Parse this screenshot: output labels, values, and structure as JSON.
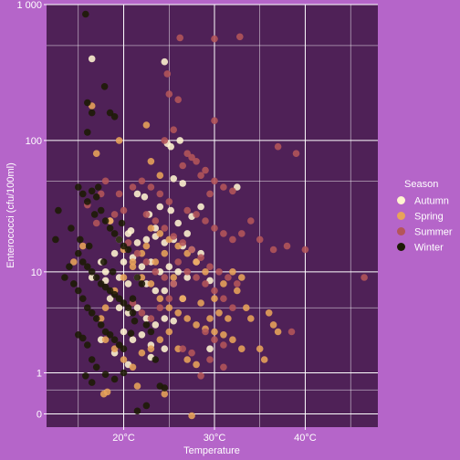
{
  "chart_data": {
    "type": "scatter",
    "title": "",
    "xlabel": "Temperature",
    "ylabel": "Enterococci (cfu/100ml)",
    "x_scale": "linear",
    "y_scale": "log10(y+1)",
    "xlim": [
      11.5,
      48
    ],
    "ylim": [
      -0.2,
      1000
    ],
    "x_ticks": [
      20,
      30,
      40
    ],
    "x_tick_labels": [
      "20°C",
      "30°C",
      "40°C"
    ],
    "y_ticks": [
      0,
      1,
      10,
      100,
      1000
    ],
    "y_tick_labels": [
      "0",
      "1",
      "10",
      "100",
      "1 000"
    ],
    "grid": true,
    "legend": {
      "title": "Season",
      "placement": "right"
    },
    "colors": {
      "panel": "#4f2157",
      "background": "#b565c9",
      "grid": "#ffffff"
    },
    "series": [
      {
        "name": "Autumn",
        "color": "#fff4d0",
        "points": [
          [
            16.5,
            400
          ],
          [
            24.5,
            380
          ],
          [
            24.8,
            95
          ],
          [
            25.2,
            90
          ],
          [
            26.2,
            100
          ],
          [
            21.5,
            40
          ],
          [
            22.3,
            38
          ],
          [
            25.5,
            52
          ],
          [
            26.5,
            48
          ],
          [
            24.0,
            32
          ],
          [
            25.2,
            30
          ],
          [
            27.5,
            27
          ],
          [
            32.5,
            45
          ],
          [
            18.5,
            25
          ],
          [
            19.5,
            18
          ],
          [
            20.5,
            20
          ],
          [
            21.5,
            17
          ],
          [
            22.5,
            18
          ],
          [
            23.5,
            19
          ],
          [
            24.5,
            17
          ],
          [
            25.5,
            18
          ],
          [
            26.5,
            16
          ],
          [
            27.5,
            15
          ],
          [
            28.5,
            14
          ],
          [
            19.0,
            14
          ],
          [
            20.0,
            12
          ],
          [
            21.0,
            13
          ],
          [
            22.0,
            11
          ],
          [
            23.0,
            12
          ],
          [
            24.0,
            10
          ],
          [
            25.0,
            11
          ],
          [
            26.0,
            10
          ],
          [
            27.0,
            9
          ],
          [
            28.0,
            12
          ],
          [
            18.0,
            10
          ],
          [
            19.5,
            9
          ],
          [
            20.5,
            8
          ],
          [
            21.5,
            9
          ],
          [
            22.5,
            8
          ],
          [
            23.5,
            7
          ],
          [
            24.5,
            7
          ],
          [
            25.5,
            8
          ],
          [
            26.5,
            6
          ],
          [
            18.5,
            6
          ],
          [
            19.5,
            5
          ],
          [
            20.5,
            4.5
          ],
          [
            21.5,
            5
          ],
          [
            22.5,
            4
          ],
          [
            23.5,
            3.5
          ],
          [
            24.5,
            4
          ],
          [
            25.5,
            3.8
          ],
          [
            20.0,
            3
          ],
          [
            21.0,
            2.5
          ],
          [
            22.0,
            2.8
          ],
          [
            23.0,
            2.2
          ],
          [
            17.5,
            2.5
          ],
          [
            19.0,
            1.8
          ],
          [
            20.5,
            1.3
          ],
          [
            23.0,
            1.6
          ],
          [
            24.5,
            2.0
          ],
          [
            18.0,
            8.5
          ],
          [
            17.5,
            12
          ],
          [
            16.5,
            9
          ],
          [
            29.5,
            2
          ],
          [
            27.0,
            20
          ],
          [
            26.0,
            24
          ],
          [
            23.5,
            22
          ],
          [
            22.8,
            28
          ],
          [
            20.8,
            21
          ],
          [
            28.5,
            32
          ],
          [
            29.5,
            8.5
          ]
        ]
      },
      {
        "name": "Spring",
        "color": "#e8a35a",
        "points": [
          [
            17.0,
            80
          ],
          [
            19.5,
            100
          ],
          [
            22.5,
            130
          ],
          [
            23.0,
            70
          ],
          [
            24.0,
            55
          ],
          [
            16.5,
            180
          ],
          [
            18.5,
            25
          ],
          [
            20.0,
            15
          ],
          [
            21.0,
            11
          ],
          [
            22.0,
            9
          ],
          [
            23.0,
            8
          ],
          [
            24.0,
            6
          ],
          [
            25.0,
            5
          ],
          [
            26.0,
            4.5
          ],
          [
            27.0,
            4
          ],
          [
            28.0,
            3.5
          ],
          [
            29.0,
            3.2
          ],
          [
            30.0,
            3
          ],
          [
            31.0,
            2.8
          ],
          [
            32.0,
            2.5
          ],
          [
            33.0,
            2
          ],
          [
            34.0,
            4
          ],
          [
            36.0,
            4.5
          ],
          [
            36.5,
            3.5
          ],
          [
            35.0,
            2
          ],
          [
            35.5,
            1.5
          ],
          [
            37.0,
            3
          ],
          [
            30.0,
            6
          ],
          [
            31.0,
            8
          ],
          [
            32.0,
            10
          ],
          [
            33.0,
            9
          ],
          [
            29.0,
            10
          ],
          [
            28.0,
            12
          ],
          [
            27.0,
            14
          ],
          [
            26.0,
            16
          ],
          [
            25.0,
            18
          ],
          [
            24.0,
            20
          ],
          [
            23.0,
            22
          ],
          [
            22.0,
            14
          ],
          [
            21.0,
            12
          ],
          [
            20.0,
            9
          ],
          [
            19.0,
            7
          ],
          [
            18.0,
            5
          ],
          [
            17.5,
            4
          ],
          [
            18.0,
            2.5
          ],
          [
            19.0,
            2
          ],
          [
            20.0,
            1.5
          ],
          [
            21.0,
            1.2
          ],
          [
            22.0,
            1.8
          ],
          [
            23.0,
            2
          ],
          [
            24.0,
            2.5
          ],
          [
            25.0,
            3
          ],
          [
            26.0,
            2
          ],
          [
            27.0,
            1.5
          ],
          [
            28.0,
            1.3
          ],
          [
            24.5,
            0.4
          ],
          [
            21.5,
            0.6
          ],
          [
            17.8,
            0.4
          ],
          [
            18.2,
            0.45
          ],
          [
            27.5,
            -0.03
          ],
          [
            15.5,
            16
          ],
          [
            14.5,
            12
          ],
          [
            26.5,
            6
          ],
          [
            28.5,
            5.5
          ],
          [
            30.5,
            4.5
          ],
          [
            31.5,
            4
          ],
          [
            25.5,
            9
          ],
          [
            29.5,
            4
          ],
          [
            33.5,
            5
          ],
          [
            32.5,
            7
          ],
          [
            23.5,
            12
          ],
          [
            24.5,
            14
          ],
          [
            22.5,
            16
          ]
        ]
      },
      {
        "name": "Summer",
        "color": "#b4555a",
        "points": [
          [
            25.0,
            220
          ],
          [
            26.0,
            200
          ],
          [
            25.5,
            120
          ],
          [
            24.5,
            100
          ],
          [
            27.0,
            80
          ],
          [
            27.5,
            75
          ],
          [
            28.0,
            70
          ],
          [
            29.0,
            60
          ],
          [
            30.0,
            50
          ],
          [
            31.0,
            45
          ],
          [
            32.0,
            42
          ],
          [
            28.5,
            55
          ],
          [
            29.5,
            40
          ],
          [
            26.5,
            65
          ],
          [
            37.0,
            90
          ],
          [
            39.0,
            80
          ],
          [
            24.8,
            310
          ],
          [
            30.0,
            560
          ],
          [
            32.8,
            580
          ],
          [
            26.2,
            570
          ],
          [
            30.0,
            140
          ],
          [
            33.0,
            20
          ],
          [
            34.0,
            25
          ],
          [
            35.0,
            18
          ],
          [
            36.5,
            15
          ],
          [
            38.0,
            16
          ],
          [
            40.0,
            15
          ],
          [
            46.5,
            9
          ],
          [
            27.0,
            30
          ],
          [
            28.0,
            28
          ],
          [
            29.0,
            25
          ],
          [
            30.0,
            22
          ],
          [
            31.0,
            20
          ],
          [
            32.0,
            18
          ],
          [
            25.0,
            35
          ],
          [
            24.0,
            40
          ],
          [
            23.0,
            45
          ],
          [
            22.0,
            50
          ],
          [
            21.0,
            45
          ],
          [
            20.0,
            30
          ],
          [
            19.0,
            28
          ],
          [
            17.0,
            24
          ],
          [
            16.0,
            33
          ],
          [
            17.5,
            40
          ],
          [
            18.0,
            50
          ],
          [
            19.5,
            40
          ],
          [
            22.5,
            28
          ],
          [
            23.5,
            25
          ],
          [
            24.5,
            22
          ],
          [
            25.5,
            19
          ],
          [
            26.5,
            17
          ],
          [
            27.5,
            15
          ],
          [
            28.5,
            13
          ],
          [
            29.5,
            11
          ],
          [
            30.5,
            10
          ],
          [
            31.5,
            9
          ],
          [
            32.5,
            8
          ],
          [
            26.0,
            12
          ],
          [
            27.0,
            10
          ],
          [
            28.0,
            9
          ],
          [
            29.0,
            8
          ],
          [
            30.0,
            7
          ],
          [
            31.0,
            6
          ],
          [
            32.0,
            5
          ],
          [
            29.0,
            3
          ],
          [
            30.0,
            2.5
          ],
          [
            31.0,
            2.2
          ],
          [
            38.5,
            3
          ],
          [
            26.5,
            2
          ],
          [
            27.5,
            1.8
          ],
          [
            28.5,
            0.9
          ],
          [
            20.5,
            17
          ],
          [
            21.5,
            14
          ],
          [
            22.5,
            12
          ],
          [
            23.5,
            10
          ],
          [
            24.5,
            9
          ],
          [
            25.5,
            8
          ],
          [
            21.0,
            5.5
          ],
          [
            22.0,
            4.5
          ],
          [
            23.0,
            4
          ],
          [
            24.0,
            5
          ],
          [
            25.0,
            6
          ],
          [
            29.5,
            1.5
          ],
          [
            31.0,
            1.2
          ]
        ]
      },
      {
        "name": "Winter",
        "color": "#1c1a05",
        "points": [
          [
            15.8,
            850
          ],
          [
            17.9,
            250
          ],
          [
            16.0,
            190
          ],
          [
            16.5,
            160
          ],
          [
            18.5,
            160
          ],
          [
            19.0,
            150
          ],
          [
            16.0,
            115
          ],
          [
            12.8,
            30
          ],
          [
            12.5,
            18
          ],
          [
            14.2,
            22
          ],
          [
            15.0,
            45
          ],
          [
            15.5,
            40
          ],
          [
            16.0,
            35
          ],
          [
            16.5,
            42
          ],
          [
            17.0,
            38
          ],
          [
            17.5,
            30
          ],
          [
            18.0,
            25
          ],
          [
            18.5,
            22
          ],
          [
            19.0,
            20
          ],
          [
            19.5,
            18
          ],
          [
            20.0,
            16
          ],
          [
            15.0,
            14
          ],
          [
            15.5,
            12
          ],
          [
            16.0,
            11
          ],
          [
            16.5,
            10
          ],
          [
            17.0,
            9
          ],
          [
            17.5,
            8
          ],
          [
            18.0,
            7.5
          ],
          [
            18.5,
            7
          ],
          [
            19.0,
            6.5
          ],
          [
            19.5,
            6
          ],
          [
            20.0,
            5.5
          ],
          [
            20.5,
            5
          ],
          [
            21.0,
            4.5
          ],
          [
            14.5,
            8
          ],
          [
            15.0,
            7
          ],
          [
            15.5,
            6
          ],
          [
            16.0,
            5
          ],
          [
            16.5,
            4.5
          ],
          [
            17.0,
            4
          ],
          [
            17.5,
            3.5
          ],
          [
            18.0,
            3
          ],
          [
            18.5,
            2.8
          ],
          [
            19.0,
            2.5
          ],
          [
            19.5,
            2.2
          ],
          [
            20.0,
            2
          ],
          [
            15.0,
            2.8
          ],
          [
            15.5,
            2.6
          ],
          [
            16.0,
            2.2
          ],
          [
            16.5,
            1.5
          ],
          [
            17.0,
            1.2
          ],
          [
            18.0,
            0.95
          ],
          [
            19.0,
            0.8
          ],
          [
            20.0,
            1.0
          ],
          [
            15.8,
            0.9
          ],
          [
            16.5,
            0.7
          ],
          [
            22.5,
            0.15
          ],
          [
            21.5,
            0.05
          ],
          [
            23.5,
            1.5
          ],
          [
            24.0,
            0.6
          ],
          [
            24.5,
            0.55
          ],
          [
            21.0,
            6
          ],
          [
            22.0,
            8
          ],
          [
            22.5,
            3.5
          ],
          [
            23.0,
            3
          ],
          [
            21.5,
            9
          ],
          [
            20.5,
            15
          ],
          [
            19.8,
            24
          ],
          [
            16.8,
            28
          ],
          [
            17.2,
            45
          ],
          [
            15.2,
            18
          ],
          [
            14.0,
            11
          ],
          [
            13.5,
            9
          ],
          [
            21.2,
            3.8
          ],
          [
            20.8,
            2.9
          ],
          [
            18.8,
            10
          ],
          [
            17.8,
            12
          ],
          [
            16.2,
            16
          ]
        ]
      }
    ]
  }
}
